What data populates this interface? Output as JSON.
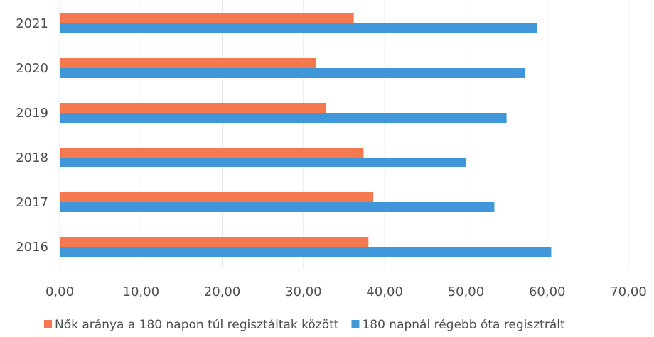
{
  "chart_data": {
    "type": "bar",
    "orientation": "horizontal",
    "categories": [
      "2016",
      "2017",
      "2018",
      "2019",
      "2020",
      "2021"
    ],
    "series": [
      {
        "name": "Nők aránya a 180 napon túl regisztáltak között",
        "color": "#f4794f",
        "values": [
          38.0,
          38.6,
          37.4,
          32.8,
          31.5,
          36.2
        ]
      },
      {
        "name": "180 napnál régebb óta regisztrált",
        "color": "#3f97d9",
        "values": [
          60.5,
          53.5,
          50.0,
          55.0,
          57.3,
          58.8
        ]
      }
    ],
    "xlim": [
      0,
      70
    ],
    "xticks": [
      "0,00",
      "10,00",
      "20,00",
      "30,00",
      "40,00",
      "50,00",
      "60,00",
      "70,00"
    ],
    "grid": true,
    "legend_position": "bottom",
    "title": "",
    "xlabel": "",
    "ylabel": ""
  }
}
